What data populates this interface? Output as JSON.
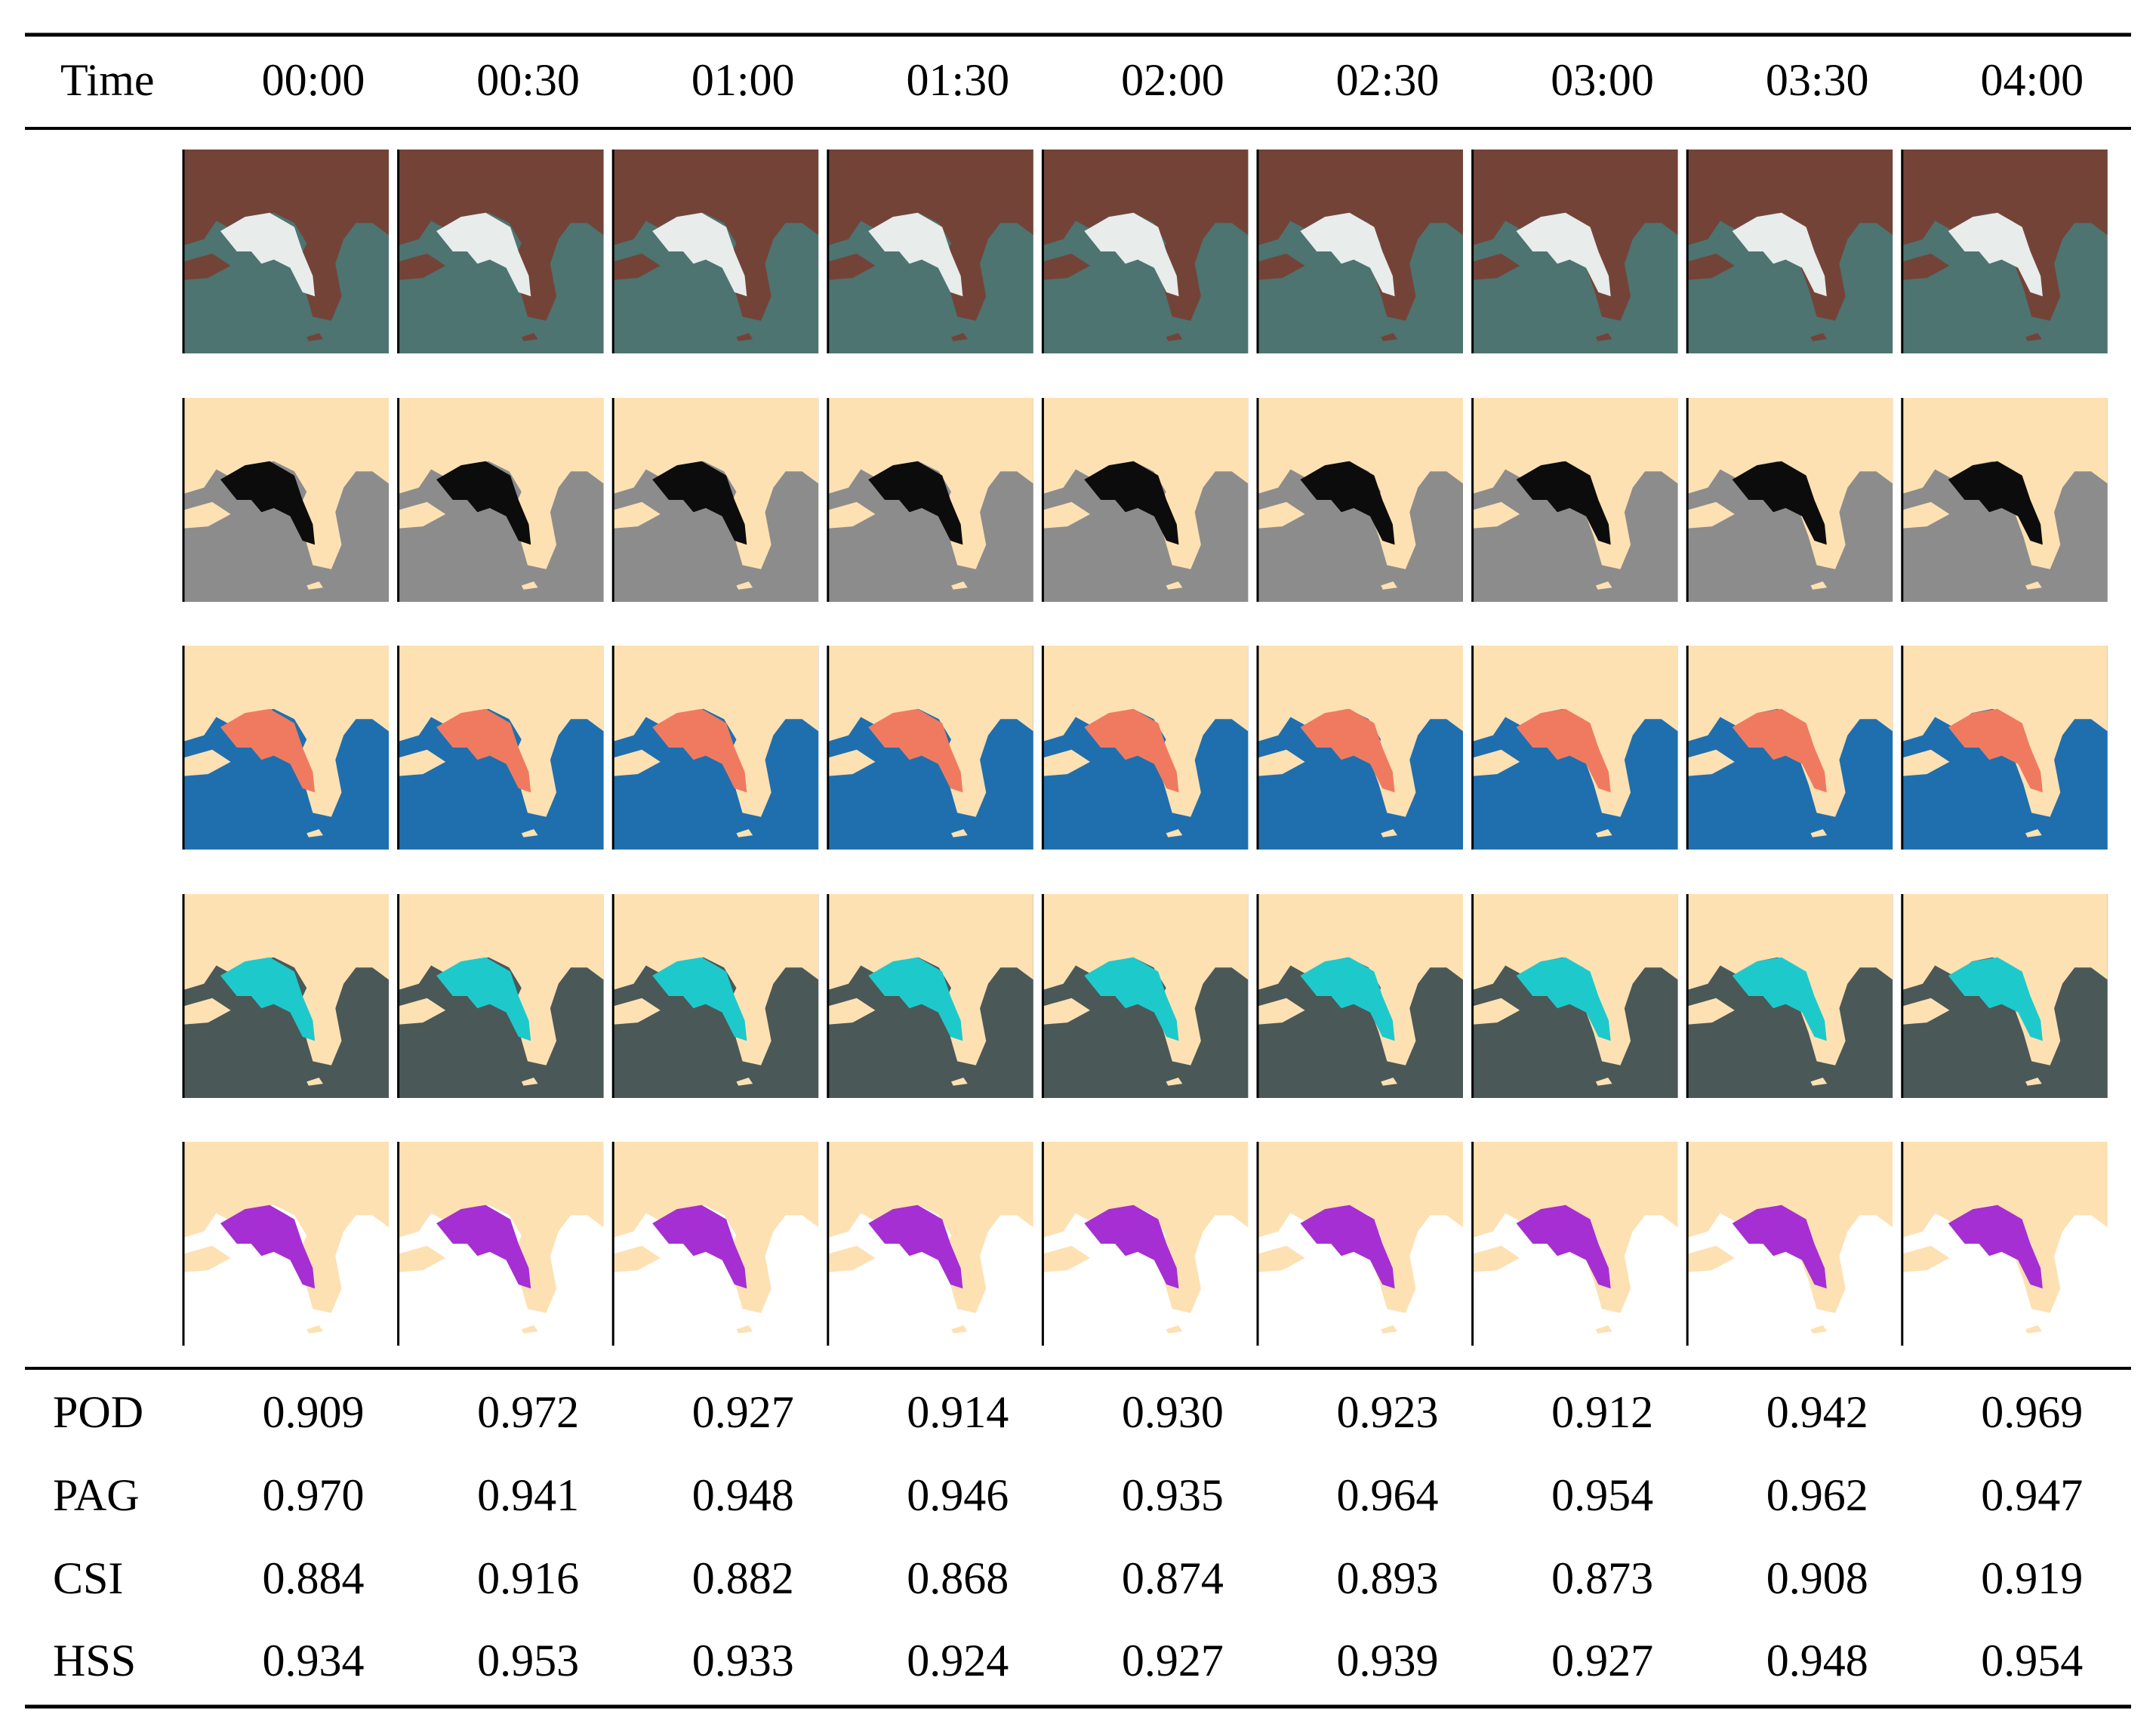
{
  "header": {
    "cells": [
      "Time",
      "00:00",
      "00:30",
      "01:00",
      "01:30",
      "02:00",
      "02:30",
      "03:00",
      "03:30",
      "04:00"
    ]
  },
  "metrics": {
    "rows": [
      {
        "label": "POD",
        "values": [
          "0.909",
          "0.972",
          "0.927",
          "0.914",
          "0.930",
          "0.923",
          "0.912",
          "0.942",
          "0.969"
        ]
      },
      {
        "label": "PAG",
        "values": [
          "0.970",
          "0.941",
          "0.948",
          "0.946",
          "0.935",
          "0.964",
          "0.954",
          "0.962",
          "0.947"
        ]
      },
      {
        "label": "CSI",
        "values": [
          "0.884",
          "0.916",
          "0.882",
          "0.868",
          "0.874",
          "0.893",
          "0.873",
          "0.908",
          "0.919"
        ]
      },
      {
        "label": "HSS",
        "values": [
          "0.934",
          "0.953",
          "0.933",
          "0.924",
          "0.927",
          "0.939",
          "0.927",
          "0.948",
          "0.954"
        ]
      }
    ]
  }
}
